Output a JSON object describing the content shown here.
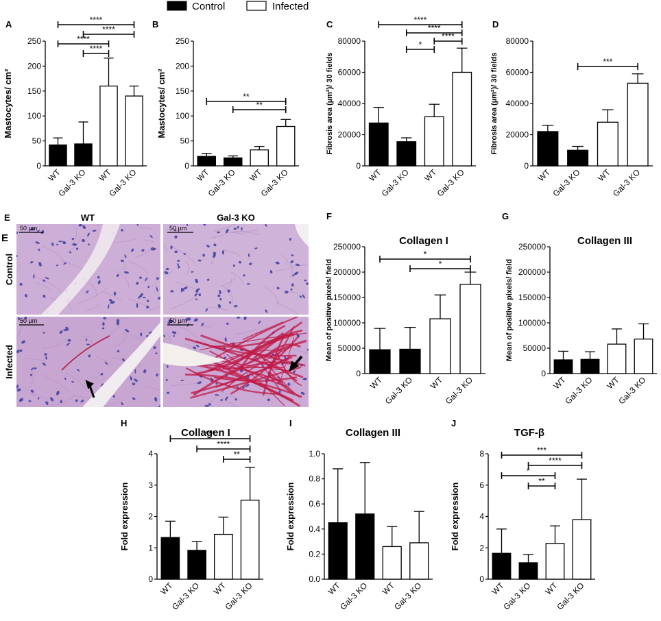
{
  "legend": {
    "items": [
      {
        "label": "Control",
        "fill": "#000000"
      },
      {
        "label": "Infected",
        "fill": "#ffffff"
      }
    ]
  },
  "micrograph": {
    "panel_letter": "E",
    "tag": "E",
    "columns": [
      "WT",
      "Gal-3 KO"
    ],
    "rows": [
      "Control",
      "Infected"
    ],
    "scale_bar": "50 µm",
    "colors": {
      "tissue": "#c9a9d4",
      "nuclei": "#3f3f9f",
      "collagen": "#c01a45",
      "background": "#f3f0ec"
    }
  },
  "chart_data": [
    {
      "id": "A",
      "type": "bar",
      "panel_letter": "A",
      "categories": [
        "WT",
        "Gal-3 KO",
        "WT",
        "Gal-3 KO"
      ],
      "values": [
        42,
        44,
        160,
        140
      ],
      "errors": [
        14,
        44,
        56,
        20
      ],
      "groups": [
        "Control",
        "Control",
        "Infected",
        "Infected"
      ],
      "ylabel": "Mastocytes/ cm²",
      "ylim": [
        0,
        250
      ],
      "yticks": [
        0,
        50,
        100,
        150,
        200,
        250
      ],
      "significance": [
        {
          "from": 0,
          "to": 3,
          "label": "****"
        },
        {
          "from": 1,
          "to": 3,
          "label": "****"
        },
        {
          "from": 0,
          "to": 2,
          "label": "****"
        },
        {
          "from": 1,
          "to": 2,
          "label": "****"
        }
      ]
    },
    {
      "id": "B",
      "type": "bar",
      "panel_letter": "B",
      "categories": [
        "WT",
        "Gal-3 KO",
        "WT",
        "Gal-3 KO"
      ],
      "values": [
        19,
        16,
        32,
        79
      ],
      "errors": [
        6,
        4,
        7,
        14
      ],
      "groups": [
        "Control",
        "Control",
        "Infected",
        "Infected"
      ],
      "ylabel": "Mastocytes/ cm²",
      "ylim": [
        0,
        250
      ],
      "yticks": [
        0,
        50,
        100,
        150,
        200,
        250
      ],
      "significance": [
        {
          "from": 0,
          "to": 3,
          "label": "**"
        },
        {
          "from": 1,
          "to": 3,
          "label": "**"
        }
      ]
    },
    {
      "id": "C",
      "type": "bar",
      "panel_letter": "C",
      "categories": [
        "WT",
        "Gal-3 KO",
        "WT",
        "Gal-3 KO"
      ],
      "values": [
        27500,
        15500,
        31500,
        60000
      ],
      "errors": [
        10000,
        2500,
        8000,
        15500
      ],
      "groups": [
        "Control",
        "Control",
        "Infected",
        "Infected"
      ],
      "ylabel": "Fibrosis area (µm²)/ 30 fields",
      "ylim": [
        0,
        80000
      ],
      "yticks": [
        0,
        20000,
        40000,
        60000,
        80000
      ],
      "significance": [
        {
          "from": 0,
          "to": 3,
          "label": "****"
        },
        {
          "from": 1,
          "to": 3,
          "label": "****"
        },
        {
          "from": 2,
          "to": 3,
          "label": "****"
        },
        {
          "from": 1,
          "to": 2,
          "label": "*"
        }
      ]
    },
    {
      "id": "D",
      "type": "bar",
      "panel_letter": "D",
      "categories": [
        "WT",
        "Gal-3 KO",
        "WT",
        "Gal-3 KO"
      ],
      "values": [
        22000,
        10000,
        28000,
        53000
      ],
      "errors": [
        4000,
        2500,
        8000,
        6000
      ],
      "groups": [
        "Control",
        "Control",
        "Infected",
        "Infected"
      ],
      "ylabel": "Fibrosis area (µm²)/ 30 fields",
      "ylim": [
        0,
        80000
      ],
      "yticks": [
        0,
        20000,
        40000,
        60000,
        80000
      ],
      "significance": [
        {
          "from": 1,
          "to": 3,
          "label": "***"
        }
      ]
    },
    {
      "id": "F",
      "type": "bar",
      "panel_letter": "F",
      "title": "Collagen I",
      "categories": [
        "WT",
        "Gal-3 KO",
        "WT",
        "Gal-3 KO"
      ],
      "values": [
        47000,
        48000,
        108000,
        176000
      ],
      "errors": [
        42000,
        43000,
        47000,
        24000
      ],
      "groups": [
        "Control",
        "Control",
        "Infected",
        "Infected"
      ],
      "ylabel": "Mean of positive pixels/ field",
      "ylim": [
        0,
        250000
      ],
      "yticks": [
        0,
        50000,
        100000,
        150000,
        200000,
        250000
      ],
      "significance": [
        {
          "from": 0,
          "to": 3,
          "label": "*"
        },
        {
          "from": 1,
          "to": 3,
          "label": "*"
        }
      ]
    },
    {
      "id": "G",
      "type": "bar",
      "panel_letter": "G",
      "title": "Collagen III",
      "categories": [
        "WT",
        "Gal-3 KO",
        "WT",
        "Gal-3 KO"
      ],
      "values": [
        27000,
        28000,
        58000,
        68000
      ],
      "errors": [
        17000,
        15000,
        30000,
        30000
      ],
      "groups": [
        "Control",
        "Control",
        "Infected",
        "Infected"
      ],
      "ylabel": "Mean of positive pixels/ field",
      "ylim": [
        0,
        250000
      ],
      "yticks": [
        0,
        50000,
        100000,
        150000,
        200000,
        250000
      ],
      "significance": []
    },
    {
      "id": "H",
      "type": "bar",
      "panel_letter": "H",
      "title": "Collagen I",
      "categories": [
        "WT",
        "Gal-3 KO",
        "WT",
        "Gal-3 KO"
      ],
      "values": [
        1.33,
        0.92,
        1.43,
        2.52
      ],
      "errors": [
        0.52,
        0.28,
        0.55,
        1.05
      ],
      "groups": [
        "Control",
        "Control",
        "Infected",
        "Infected"
      ],
      "ylabel": "Fold expression",
      "ylim": [
        0,
        4
      ],
      "yticks": [
        0,
        1,
        2,
        3,
        4
      ],
      "significance": [
        {
          "from": 0,
          "to": 3,
          "label": "***"
        },
        {
          "from": 1,
          "to": 3,
          "label": "****"
        },
        {
          "from": 2,
          "to": 3,
          "label": "**"
        }
      ]
    },
    {
      "id": "I",
      "type": "bar",
      "panel_letter": "I",
      "title": "Collagen III",
      "categories": [
        "WT",
        "Gal-3 KO",
        "WT",
        "Gal-3 KO"
      ],
      "values": [
        0.45,
        0.52,
        0.26,
        0.29
      ],
      "errors": [
        0.43,
        0.41,
        0.16,
        0.25
      ],
      "groups": [
        "Control",
        "Control",
        "Infected",
        "Infected"
      ],
      "ylabel": "Fold expression",
      "ylim": [
        0,
        1.0
      ],
      "yticks": [
        "0.0",
        "0.2",
        "0.4",
        "0.6",
        "0.8",
        "1.0"
      ],
      "significance": []
    },
    {
      "id": "J",
      "type": "bar",
      "panel_letter": "J",
      "title": "TGF-β",
      "categories": [
        "WT",
        "Gal-3 KO",
        "WT",
        "Gal-3 KO"
      ],
      "values": [
        1.65,
        1.05,
        2.28,
        3.8
      ],
      "errors": [
        1.55,
        0.52,
        1.12,
        2.58
      ],
      "groups": [
        "Control",
        "Control",
        "Infected",
        "Infected"
      ],
      "ylabel": "Fold expression",
      "ylim": [
        0,
        8
      ],
      "yticks": [
        0,
        2,
        4,
        6,
        8
      ],
      "significance": [
        {
          "from": 0,
          "to": 3,
          "label": "***"
        },
        {
          "from": 1,
          "to": 3,
          "label": "****"
        },
        {
          "from": 0,
          "to": 2,
          "label": "*"
        },
        {
          "from": 1,
          "to": 2,
          "label": "**"
        }
      ]
    }
  ]
}
